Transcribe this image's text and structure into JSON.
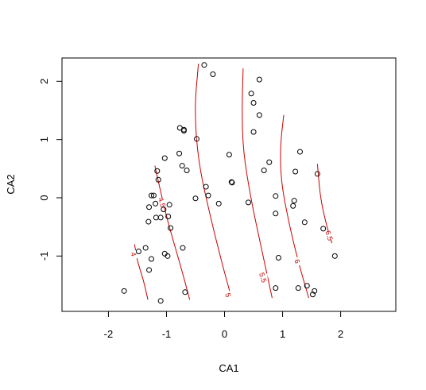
{
  "chart_data": {
    "type": "scatter",
    "title": "",
    "xlabel": "CA1",
    "ylabel": "CA2",
    "xlim": [
      -2.8,
      2.95
    ],
    "ylim": [
      -1.95,
      2.4
    ],
    "x_ticks": [
      -2,
      -1,
      0,
      1,
      2
    ],
    "x_tick_labels": [
      "-2",
      "-1",
      "0",
      "1",
      "2"
    ],
    "y_ticks": [
      -1,
      0,
      1,
      2
    ],
    "y_tick_labels": [
      "-1",
      "0",
      "1",
      "2"
    ],
    "grid": false,
    "legend": "none",
    "point_color": "#000000",
    "contour_color": "#cc0000",
    "points": [
      {
        "x": -0.35,
        "y": 2.28
      },
      {
        "x": -0.2,
        "y": 2.12
      },
      {
        "x": 0.6,
        "y": 2.03
      },
      {
        "x": 0.46,
        "y": 1.79
      },
      {
        "x": 0.5,
        "y": 1.63
      },
      {
        "x": 0.6,
        "y": 1.42
      },
      {
        "x": -0.77,
        "y": 1.2
      },
      {
        "x": -0.7,
        "y": 1.15
      },
      {
        "x": -0.7,
        "y": 1.17
      },
      {
        "x": 0.5,
        "y": 1.13
      },
      {
        "x": -0.48,
        "y": 1.01
      },
      {
        "x": -0.78,
        "y": 0.76
      },
      {
        "x": 1.3,
        "y": 0.79
      },
      {
        "x": 0.08,
        "y": 0.74
      },
      {
        "x": -1.03,
        "y": 0.68
      },
      {
        "x": 0.77,
        "y": 0.61
      },
      {
        "x": -0.73,
        "y": 0.55
      },
      {
        "x": -0.65,
        "y": 0.47
      },
      {
        "x": 0.68,
        "y": 0.47
      },
      {
        "x": -1.16,
        "y": 0.46
      },
      {
        "x": 1.22,
        "y": 0.45
      },
      {
        "x": 1.6,
        "y": 0.41
      },
      {
        "x": -1.14,
        "y": 0.31
      },
      {
        "x": 0.12,
        "y": 0.27
      },
      {
        "x": 0.13,
        "y": 0.26
      },
      {
        "x": -0.32,
        "y": 0.19
      },
      {
        "x": -1.26,
        "y": 0.04
      },
      {
        "x": -1.22,
        "y": 0.04
      },
      {
        "x": -0.28,
        "y": 0.04
      },
      {
        "x": 0.88,
        "y": 0.03
      },
      {
        "x": -0.5,
        "y": -0.01
      },
      {
        "x": 1.2,
        "y": -0.05
      },
      {
        "x": 0.41,
        "y": -0.08
      },
      {
        "x": -0.1,
        "y": -0.1
      },
      {
        "x": -1.19,
        "y": -0.1
      },
      {
        "x": -0.95,
        "y": -0.12
      },
      {
        "x": -1.3,
        "y": -0.16
      },
      {
        "x": 1.18,
        "y": -0.14
      },
      {
        "x": -1.05,
        "y": -0.2
      },
      {
        "x": 0.88,
        "y": -0.27
      },
      {
        "x": -0.97,
        "y": -0.32
      },
      {
        "x": -1.18,
        "y": -0.34
      },
      {
        "x": -1.1,
        "y": -0.34
      },
      {
        "x": -1.31,
        "y": -0.41
      },
      {
        "x": 1.38,
        "y": -0.42
      },
      {
        "x": -0.93,
        "y": -0.52
      },
      {
        "x": 1.7,
        "y": -0.53
      },
      {
        "x": -0.72,
        "y": -0.86
      },
      {
        "x": -1.36,
        "y": -0.86
      },
      {
        "x": -1.48,
        "y": -0.92
      },
      {
        "x": -1.03,
        "y": -0.96
      },
      {
        "x": -0.98,
        "y": -1.0
      },
      {
        "x": 1.9,
        "y": -1.0
      },
      {
        "x": 0.93,
        "y": -1.03
      },
      {
        "x": -1.26,
        "y": -1.05
      },
      {
        "x": -1.3,
        "y": -1.24
      },
      {
        "x": 1.42,
        "y": -1.51
      },
      {
        "x": 0.88,
        "y": -1.55
      },
      {
        "x": 1.27,
        "y": -1.55
      },
      {
        "x": 1.55,
        "y": -1.6
      },
      {
        "x": -0.68,
        "y": -1.62
      },
      {
        "x": -1.73,
        "y": -1.6
      },
      {
        "x": 1.52,
        "y": -1.66
      },
      {
        "x": -1.1,
        "y": -1.77
      }
    ],
    "contours": [
      {
        "level": "4",
        "points": [
          [
            -1.55,
            -0.8
          ],
          [
            -1.5,
            -1.1
          ],
          [
            -1.4,
            -1.4
          ],
          [
            -1.32,
            -1.75
          ]
        ],
        "label_at": [
          -1.57,
          -0.97
        ]
      },
      {
        "level": "4.5",
        "points": [
          [
            -1.2,
            0.55
          ],
          [
            -1.1,
            0.1
          ],
          [
            -0.98,
            -0.4
          ],
          [
            -0.85,
            -0.85
          ],
          [
            -0.72,
            -1.3
          ],
          [
            -0.6,
            -1.75
          ]
        ],
        "label_at": [
          -1.08,
          -0.08
        ]
      },
      {
        "level": "5",
        "points": [
          [
            -0.45,
            2.3
          ],
          [
            -0.52,
            1.5
          ],
          [
            -0.45,
            0.6
          ],
          [
            -0.25,
            -0.3
          ],
          [
            -0.05,
            -1.1
          ],
          [
            0.12,
            -1.72
          ]
        ],
        "label_at": [
          0.06,
          -1.67
        ]
      },
      {
        "level": "5.5",
        "points": [
          [
            0.32,
            2.22
          ],
          [
            0.3,
            1.5
          ],
          [
            0.32,
            0.8
          ],
          [
            0.45,
            0.0
          ],
          [
            0.62,
            -0.8
          ],
          [
            0.82,
            -1.72
          ]
        ],
        "label_at": [
          0.66,
          -1.37
        ]
      },
      {
        "level": "6",
        "points": [
          [
            1.02,
            1.42
          ],
          [
            0.96,
            0.9
          ],
          [
            0.97,
            0.3
          ],
          [
            1.1,
            -0.4
          ],
          [
            1.27,
            -1.1
          ],
          [
            1.45,
            -1.72
          ]
        ],
        "label_at": [
          1.25,
          -1.09
        ]
      },
      {
        "level": "6.5",
        "points": [
          [
            1.6,
            0.58
          ],
          [
            1.65,
            0.0
          ],
          [
            1.75,
            -0.45
          ],
          [
            1.85,
            -0.78
          ]
        ],
        "label_at": [
          1.8,
          -0.65
        ]
      }
    ]
  }
}
